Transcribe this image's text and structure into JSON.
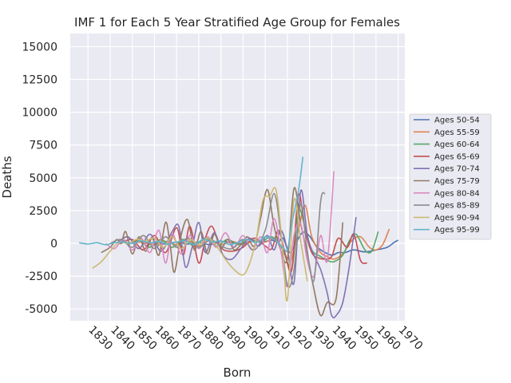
{
  "chart_data": {
    "type": "line",
    "title": "IMF 1 for Each 5 Year Stratified Age Group for Females",
    "xlabel": "Born",
    "ylabel": "Deaths",
    "xlim": [
      1822,
      1973
    ],
    "ylim": [
      -5900,
      16000
    ],
    "xticks": [
      1830,
      1840,
      1850,
      1860,
      1870,
      1880,
      1890,
      1900,
      1910,
      1920,
      1930,
      1940,
      1950,
      1960,
      1970
    ],
    "yticks": [
      -5000,
      -2500,
      0,
      2500,
      5000,
      7500,
      10000,
      12500,
      15000
    ],
    "grid": true,
    "legend_position": "right",
    "series": [
      {
        "name": "Ages 50-54",
        "color": "#4c72b0",
        "x": [
          1855,
          1860,
          1865,
          1870,
          1875,
          1880,
          1885,
          1890,
          1895,
          1900,
          1905,
          1910,
          1913,
          1916,
          1918,
          1921,
          1924,
          1927,
          1930,
          1933,
          1936,
          1940,
          1943,
          1946,
          1950,
          1955,
          1960,
          1965,
          1968,
          1970
        ],
        "y": [
          0,
          50,
          -50,
          100,
          -50,
          100,
          -100,
          150,
          50,
          0,
          200,
          150,
          250,
          100,
          400,
          -700,
          100,
          850,
          550,
          -200,
          -600,
          -900,
          -700,
          -700,
          -500,
          -650,
          -500,
          -300,
          50,
          250
        ]
      },
      {
        "name": "Ages 55-59",
        "color": "#dd8452",
        "x": [
          1850,
          1855,
          1860,
          1865,
          1870,
          1875,
          1880,
          1885,
          1890,
          1895,
          1900,
          1905,
          1910,
          1914,
          1918,
          1921,
          1925,
          1928,
          1931,
          1935,
          1938,
          1941,
          1945,
          1949,
          1953,
          1957,
          1960,
          1963,
          1966
        ],
        "y": [
          0,
          100,
          -100,
          150,
          -100,
          200,
          -200,
          200,
          -100,
          150,
          -100,
          200,
          100,
          350,
          -400,
          -1600,
          1000,
          2900,
          500,
          -700,
          -1000,
          -1200,
          -800,
          200,
          500,
          -300,
          -500,
          -100,
          1100
        ]
      },
      {
        "name": "Ages 60-64",
        "color": "#55a868",
        "x": [
          1848,
          1853,
          1858,
          1863,
          1868,
          1873,
          1878,
          1883,
          1888,
          1893,
          1898,
          1903,
          1908,
          1913,
          1918,
          1922,
          1925,
          1928,
          1931,
          1935,
          1938,
          1941,
          1945,
          1948,
          1951,
          1955,
          1958,
          1961
        ],
        "y": [
          0,
          200,
          -300,
          300,
          -300,
          300,
          -200,
          400,
          -200,
          300,
          -100,
          300,
          100,
          500,
          -500,
          -1900,
          2500,
          1200,
          -500,
          -1000,
          -1300,
          -1400,
          -900,
          200,
          700,
          -500,
          -600,
          900
        ]
      },
      {
        "name": "Ages 65-69",
        "color": "#c44e52",
        "x": [
          1845,
          1850,
          1855,
          1860,
          1865,
          1870,
          1873,
          1876,
          1880,
          1883,
          1886,
          1890,
          1895,
          1900,
          1905,
          1910,
          1913,
          1916,
          1919,
          1922,
          1925,
          1928,
          1931,
          1934,
          1937,
          1940,
          1943,
          1947,
          1950,
          1953,
          1956
        ],
        "y": [
          0,
          300,
          -500,
          600,
          -700,
          1200,
          -900,
          1300,
          -1500,
          400,
          1300,
          -300,
          -600,
          -300,
          400,
          -200,
          -400,
          1000,
          -800,
          -2000,
          3700,
          1000,
          -700,
          -1100,
          -1200,
          -1000,
          400,
          -300,
          700,
          -1300,
          -1500
        ]
      },
      {
        "name": "Ages 70-74",
        "color": "#8172b3",
        "x": [
          1843,
          1848,
          1853,
          1858,
          1863,
          1868,
          1871,
          1874,
          1877,
          1880,
          1883,
          1887,
          1891,
          1895,
          1899,
          1903,
          1907,
          1911,
          1914,
          1917,
          1920,
          1923,
          1926,
          1929,
          1932,
          1935,
          1938,
          1940,
          1942,
          1945,
          1948,
          1951
        ],
        "y": [
          0,
          500,
          -400,
          700,
          -600,
          900,
          1300,
          -1800,
          -300,
          1600,
          -700,
          800,
          -900,
          -1200,
          -400,
          400,
          -200,
          600,
          -500,
          1000,
          -500,
          -3000,
          4000,
          600,
          -900,
          -2000,
          -3800,
          -5500,
          -5500,
          -4500,
          -1700,
          2000
        ]
      },
      {
        "name": "Ages 75-79",
        "color": "#937860",
        "x": [
          1836,
          1840,
          1843,
          1845,
          1847,
          1850,
          1853,
          1856,
          1859,
          1862,
          1865,
          1867,
          1869,
          1872,
          1875,
          1878,
          1881,
          1884,
          1887,
          1890,
          1893,
          1896,
          1899,
          1902,
          1905,
          1908,
          1911,
          1914,
          1917,
          1920,
          1923,
          1926,
          1929,
          1932,
          1935,
          1938,
          1942,
          1945
        ],
        "y": [
          -700,
          -300,
          300,
          0,
          900,
          -800,
          500,
          -600,
          400,
          -900,
          1600,
          0,
          -2200,
          600,
          1800,
          -500,
          900,
          -800,
          700,
          -400,
          300,
          -500,
          -100,
          500,
          -200,
          2000,
          4100,
          1300,
          -500,
          -1200,
          4200,
          1500,
          -800,
          -3500,
          -5500,
          -4500,
          -4200,
          1600
        ]
      },
      {
        "name": "Ages 80-84",
        "color": "#da8bc3",
        "x": [
          1838,
          1842,
          1846,
          1850,
          1854,
          1858,
          1862,
          1865,
          1868,
          1872,
          1876,
          1880,
          1884,
          1888,
          1892,
          1896,
          1900,
          1904,
          1908,
          1911,
          1914,
          1917,
          1920,
          1923,
          1926,
          1929,
          1932,
          1935,
          1938,
          1941
        ],
        "y": [
          0,
          -400,
          300,
          -500,
          400,
          -700,
          1000,
          -1500,
          700,
          -800,
          600,
          -400,
          500,
          -300,
          800,
          -300,
          600,
          -500,
          500,
          -700,
          1900,
          -500,
          -3300,
          600,
          1500,
          -1300,
          -2500,
          600,
          -1300,
          5500
        ]
      },
      {
        "name": "Ages 85-89",
        "color": "#8c8c8c",
        "x": [
          1840,
          1845,
          1850,
          1855,
          1860,
          1865,
          1870,
          1875,
          1880,
          1885,
          1890,
          1895,
          1900,
          1905,
          1910,
          1914,
          1917,
          1920,
          1923,
          1926,
          1929,
          1932,
          1935,
          1937
        ],
        "y": [
          0,
          300,
          -300,
          600,
          -400,
          500,
          -300,
          400,
          -300,
          300,
          -200,
          -400,
          300,
          -500,
          1000,
          3800,
          800,
          -3200,
          -2000,
          3000,
          -600,
          -2800,
          3200,
          3800
        ]
      },
      {
        "name": "Ages 90-94",
        "color": "#ccb974",
        "x": [
          1832,
          1836,
          1840,
          1844,
          1848,
          1852,
          1856,
          1860,
          1864,
          1868,
          1872,
          1876,
          1880,
          1884,
          1888,
          1892,
          1896,
          1900,
          1903,
          1906,
          1909,
          1912,
          1915,
          1918,
          1920,
          1923,
          1926,
          1929
        ],
        "y": [
          -1900,
          -1400,
          -600,
          100,
          0,
          300,
          200,
          400,
          -300,
          500,
          -400,
          300,
          -100,
          400,
          -200,
          -1200,
          -2000,
          -2400,
          -1500,
          400,
          3300,
          3600,
          4000,
          -700,
          -4300,
          3300,
          200,
          -2900
        ]
      },
      {
        "name": "Ages 95-99",
        "color": "#64b5cd",
        "x": [
          1826,
          1830,
          1834,
          1838,
          1842,
          1846,
          1850,
          1854,
          1858,
          1862,
          1866,
          1870,
          1874,
          1878,
          1882,
          1886,
          1890,
          1894,
          1898,
          1902,
          1906,
          1910,
          1914,
          1918,
          1920,
          1922,
          1925,
          1927
        ],
        "y": [
          50,
          -50,
          50,
          -100,
          50,
          100,
          0,
          200,
          50,
          150,
          -50,
          100,
          200,
          -100,
          300,
          100,
          200,
          -100,
          100,
          300,
          50,
          500,
          300,
          -300,
          -500,
          1500,
          4000,
          6600
        ]
      }
    ]
  }
}
